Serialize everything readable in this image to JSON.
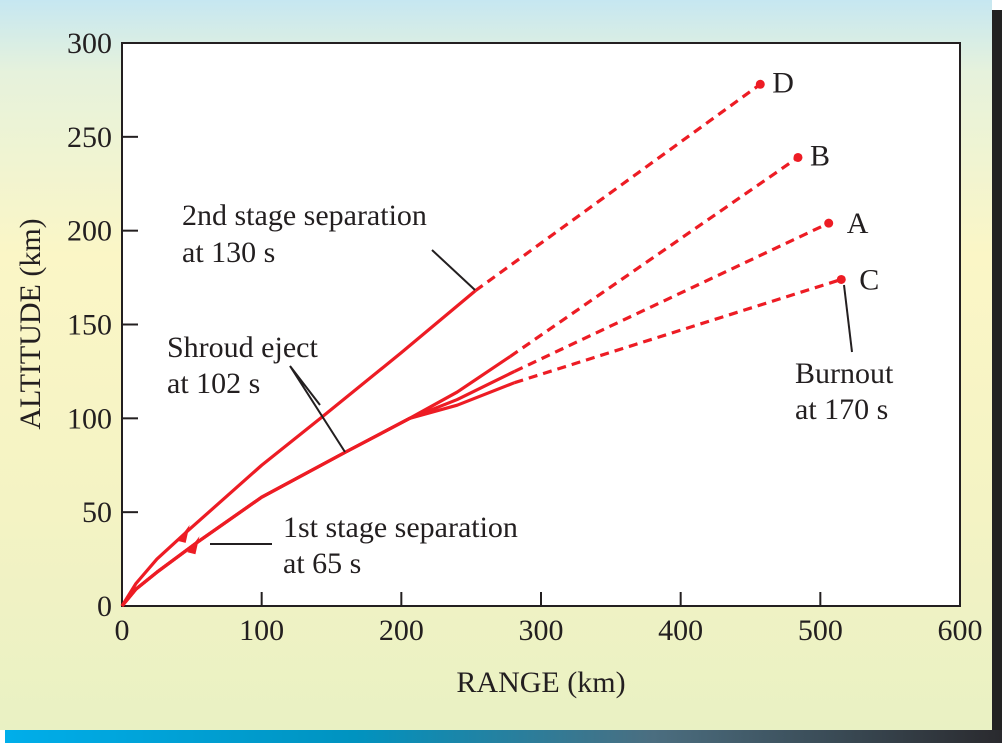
{
  "chart_data": {
    "type": "line",
    "title": "",
    "xlabel": "RANGE (km)",
    "ylabel": "ALTITUDE (km)",
    "xlim": [
      0,
      600
    ],
    "ylim": [
      0,
      300
    ],
    "xticks": [
      "0",
      "100",
      "200",
      "300",
      "400",
      "500",
      "600"
    ],
    "yticks": [
      "0",
      "50",
      "100",
      "150",
      "200",
      "250",
      "300"
    ],
    "grid": false,
    "colors": {
      "trajectory": "#ed1c24",
      "axis": "#231f20"
    },
    "series": [
      {
        "name": "D",
        "solid": [
          [
            0,
            0
          ],
          [
            10,
            12
          ],
          [
            25,
            25
          ],
          [
            47,
            40
          ],
          [
            100,
            75
          ],
          [
            142,
            100
          ],
          [
            200,
            135
          ],
          [
            253,
            168
          ]
        ],
        "dashed_end": [
          457,
          278
        ]
      },
      {
        "name": "B",
        "solid": [
          [
            0,
            0
          ],
          [
            10,
            9
          ],
          [
            25,
            18
          ],
          [
            54,
            34
          ],
          [
            100,
            58
          ],
          [
            160,
            82
          ],
          [
            206,
            100
          ],
          [
            240,
            114
          ],
          [
            278,
            133
          ]
        ],
        "dashed_end": [
          484,
          239
        ]
      },
      {
        "name": "A",
        "solid": [
          [
            0,
            0
          ],
          [
            10,
            9
          ],
          [
            25,
            18
          ],
          [
            54,
            34
          ],
          [
            100,
            58
          ],
          [
            160,
            82
          ],
          [
            206,
            100
          ],
          [
            240,
            110
          ],
          [
            281,
            125
          ]
        ],
        "dashed_end": [
          506,
          204
        ]
      },
      {
        "name": "C",
        "solid": [
          [
            0,
            0
          ],
          [
            10,
            9
          ],
          [
            25,
            18
          ],
          [
            54,
            34
          ],
          [
            100,
            58
          ],
          [
            160,
            82
          ],
          [
            206,
            100
          ],
          [
            240,
            107
          ],
          [
            281,
            119
          ]
        ],
        "dashed_end": [
          515,
          174
        ]
      }
    ],
    "annotations": {
      "second_stage": [
        "2nd stage separation",
        "at 130 s"
      ],
      "shroud": [
        "Shroud eject",
        "at 102 s"
      ],
      "first_stage": [
        "1st stage separation",
        "at 65 s"
      ],
      "burnout": [
        "Burnout",
        "at 170 s"
      ]
    }
  }
}
